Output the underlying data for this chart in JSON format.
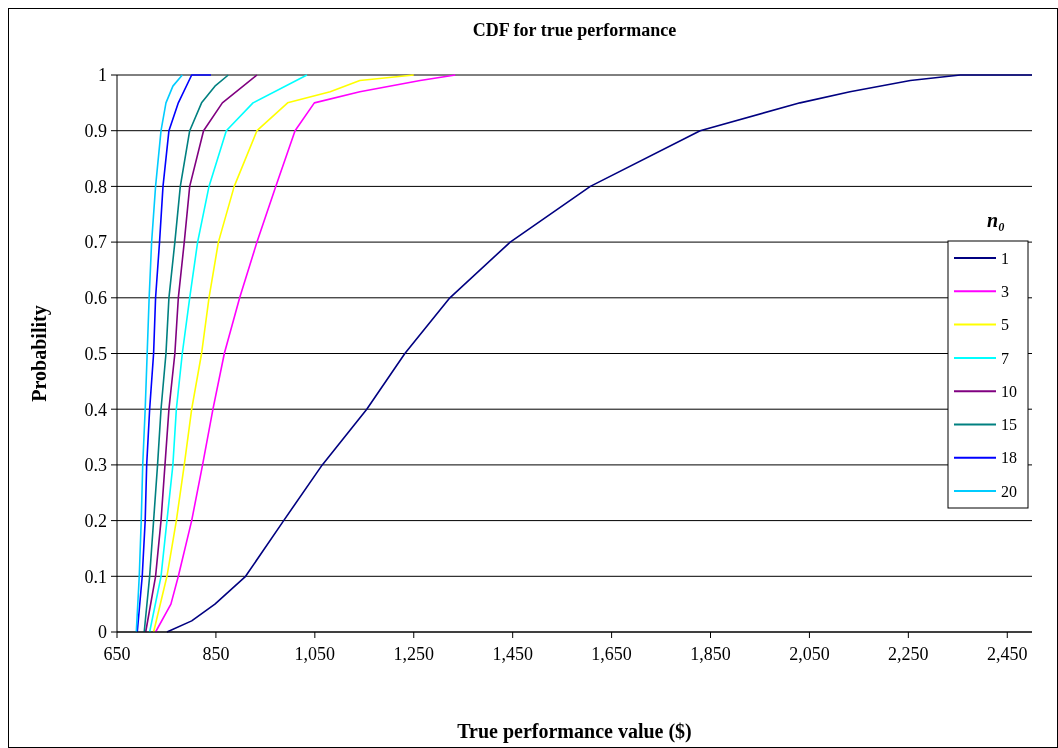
{
  "chart_data": {
    "type": "line",
    "title": "CDF for true performance",
    "xlabel": "True performance value ($)",
    "ylabel": "Probability",
    "legend_title": "n₀",
    "legend": "right",
    "grid": "y",
    "xlim": [
      650,
      2500
    ],
    "xticks": [
      {
        "value": 650,
        "label": "650"
      },
      {
        "value": 850,
        "label": "850"
      },
      {
        "value": 1050,
        "label": "1,050"
      },
      {
        "value": 1250,
        "label": "1,250"
      },
      {
        "value": 1450,
        "label": "1,450"
      },
      {
        "value": 1650,
        "label": "1,650"
      },
      {
        "value": 1850,
        "label": "1,850"
      },
      {
        "value": 2050,
        "label": "2,050"
      },
      {
        "value": 2250,
        "label": "2,250"
      },
      {
        "value": 2450,
        "label": "2,450"
      }
    ],
    "ylim": [
      0,
      1
    ],
    "yticks": [
      0,
      0.1,
      0.2,
      0.3,
      0.4,
      0.5,
      0.6,
      0.7,
      0.8,
      0.9,
      1
    ],
    "series": [
      {
        "name": "1",
        "color": "#000080",
        "x": [
          751,
          801,
          848,
          910,
          987,
          1065,
          1155,
          1232,
          1323,
          1445,
          1607,
          1829,
          2031,
          2132,
          2254,
          2355,
          2500
        ],
        "values": [
          0,
          0.02,
          0.05,
          0.1,
          0.2,
          0.3,
          0.4,
          0.5,
          0.6,
          0.7,
          0.8,
          0.9,
          0.95,
          0.97,
          0.99,
          1,
          1
        ]
      },
      {
        "name": "3",
        "color": "#ff00ff",
        "x": [
          728,
          759,
          774,
          801,
          823,
          844,
          867,
          898,
          933,
          971,
          1010,
          1049,
          1141,
          1263,
          1334
        ],
        "values": [
          0,
          0.05,
          0.1,
          0.2,
          0.3,
          0.4,
          0.5,
          0.6,
          0.7,
          0.8,
          0.9,
          0.95,
          0.97,
          0.99,
          1
        ]
      },
      {
        "name": "5",
        "color": "#ffff00",
        "x": [
          724,
          751,
          770,
          786,
          801,
          821,
          836,
          855,
          887,
          933,
          995,
          1081,
          1141,
          1250
        ],
        "values": [
          0,
          0.1,
          0.2,
          0.3,
          0.4,
          0.5,
          0.6,
          0.7,
          0.8,
          0.9,
          0.95,
          0.97,
          0.99,
          1
        ]
      },
      {
        "name": "7",
        "color": "#00ffff",
        "x": [
          716,
          739,
          751,
          763,
          770,
          782,
          797,
          813,
          836,
          871,
          925,
          1034
        ],
        "values": [
          0,
          0.1,
          0.2,
          0.3,
          0.4,
          0.5,
          0.6,
          0.7,
          0.8,
          0.9,
          0.95,
          1
        ]
      },
      {
        "name": "10",
        "color": "#800080",
        "x": [
          708,
          728,
          739,
          747,
          755,
          767,
          774,
          786,
          797,
          825,
          863,
          933
        ],
        "values": [
          0,
          0.1,
          0.2,
          0.3,
          0.4,
          0.5,
          0.6,
          0.7,
          0.8,
          0.9,
          0.95,
          1
        ]
      },
      {
        "name": "15",
        "color": "#008080",
        "x": [
          705,
          716,
          724,
          732,
          739,
          749,
          755,
          767,
          778,
          797,
          821,
          848,
          875
        ],
        "values": [
          0,
          0.1,
          0.2,
          0.3,
          0.4,
          0.5,
          0.6,
          0.7,
          0.8,
          0.9,
          0.95,
          0.98,
          1
        ]
      },
      {
        "name": "18",
        "color": "#0000ff",
        "x": [
          691,
          701,
          707,
          710,
          716,
          724,
          728,
          736,
          743,
          755,
          774,
          801,
          840
        ],
        "values": [
          0,
          0.1,
          0.2,
          0.3,
          0.4,
          0.5,
          0.6,
          0.7,
          0.8,
          0.9,
          0.95,
          1,
          1
        ]
      },
      {
        "name": "20",
        "color": "#00ccff",
        "x": [
          689,
          695,
          699,
          702,
          707,
          711,
          715,
          720,
          728,
          739,
          749,
          763,
          782
        ],
        "values": [
          0,
          0.1,
          0.2,
          0.3,
          0.4,
          0.5,
          0.6,
          0.7,
          0.8,
          0.9,
          0.95,
          0.98,
          1
        ]
      }
    ]
  }
}
